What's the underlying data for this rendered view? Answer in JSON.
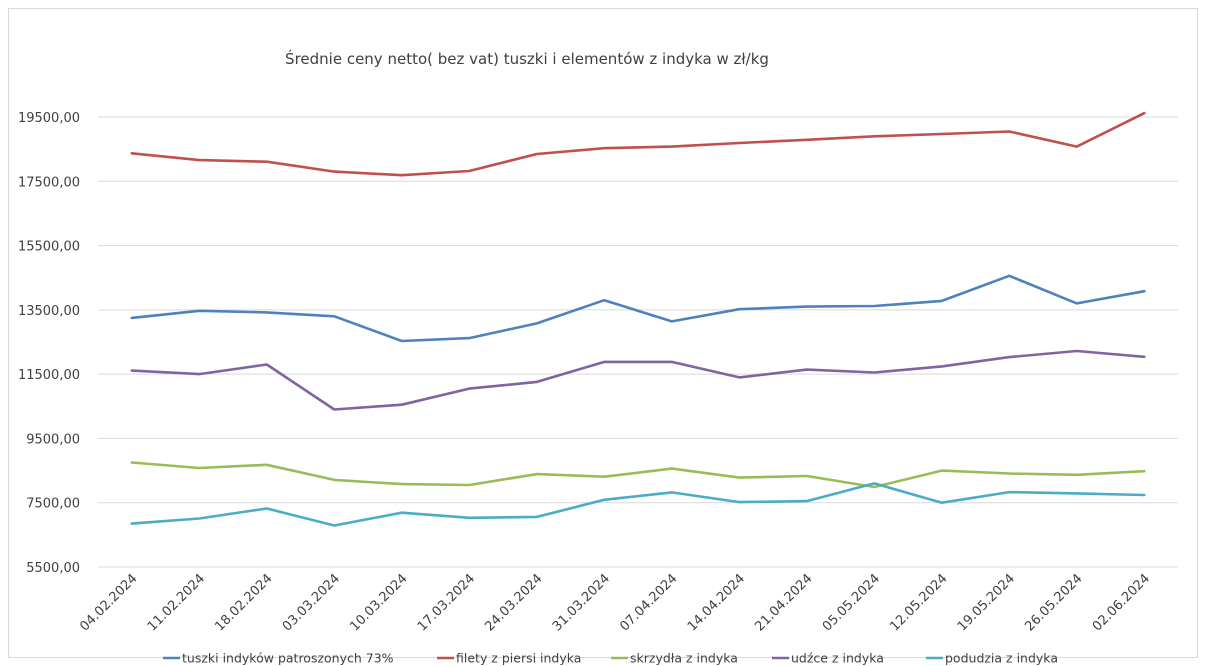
{
  "chart_data": {
    "type": "line",
    "title": "Średnie ceny netto( bez vat) tuszki i elementów z indyka w zł/kg",
    "xlabel": "",
    "ylabel": "",
    "ylim": [
      5500,
      19500
    ],
    "yticks": [
      "19500,00",
      "17500,00",
      "15500,00",
      "13500,00",
      "11500,00",
      "9500,00",
      "7500,00",
      "5500,00"
    ],
    "ytick_values": [
      19500,
      17500,
      15500,
      13500,
      11500,
      9500,
      7500,
      5500
    ],
    "grid": "horizontal",
    "legend_position": "bottom",
    "categories": [
      "04.02.2024",
      "11.02.2024",
      "18.02.2024",
      "03.03.2024",
      "10.03.2024",
      "17.03.2024",
      "24.03.2024",
      "31.03.2024",
      "07.04.2024",
      "14.04.2024",
      "21.04.2024",
      "05.05.2024",
      "12.05.2024",
      "19.05.2024",
      "26.05.2024",
      "02.06.2024"
    ],
    "series": [
      {
        "name": "tuszki indyków patroszonych 73%",
        "color": "#4f81bd",
        "values": [
          13250,
          13470,
          13420,
          13300,
          12530,
          12620,
          13080,
          13800,
          13140,
          13520,
          13600,
          13620,
          13780,
          14560,
          13700,
          14080
        ]
      },
      {
        "name": "filety z piersi indyka",
        "color": "#c0504d",
        "values": [
          18370,
          18160,
          18110,
          17800,
          17690,
          17820,
          18350,
          18530,
          18580,
          18690,
          18790,
          18900,
          18970,
          19050,
          18580,
          19620
        ]
      },
      {
        "name": "skrzydła z indyka",
        "color": "#9bbb59",
        "values": [
          8750,
          8580,
          8680,
          8210,
          8080,
          8050,
          8390,
          8310,
          8560,
          8280,
          8330,
          7990,
          8500,
          8410,
          8370,
          8480
        ]
      },
      {
        "name": "udźce z indyka",
        "color": "#8064a2",
        "values": [
          11610,
          11500,
          11800,
          10400,
          10550,
          11050,
          11260,
          11880,
          11880,
          11400,
          11640,
          11550,
          11740,
          12030,
          12220,
          12040
        ]
      },
      {
        "name": "podudzia z indyka",
        "color": "#4bacc6",
        "values": [
          6850,
          7010,
          7320,
          6790,
          7190,
          7030,
          7060,
          7590,
          7820,
          7520,
          7550,
          8100,
          7500,
          7830,
          7790,
          7740
        ]
      }
    ]
  }
}
